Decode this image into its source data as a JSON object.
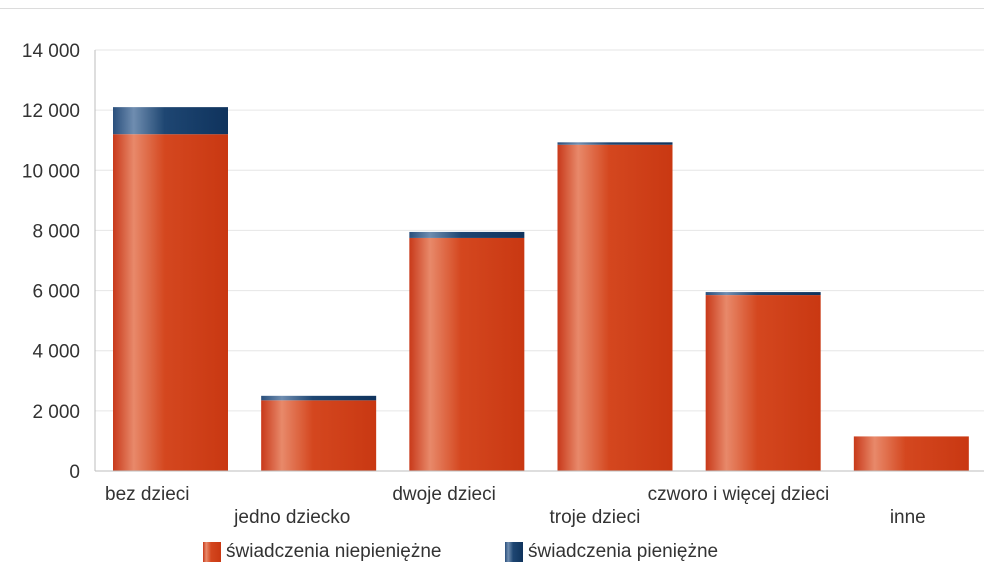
{
  "chart_data": {
    "type": "bar",
    "stacked": true,
    "categories": [
      "bez dzieci",
      "jedno dziecko",
      "dwoje dzieci",
      "troje dzieci",
      "czworo i więcej dzieci",
      "inne"
    ],
    "series": [
      {
        "name": "świadczenia niepieniężne",
        "values": [
          11200,
          2350,
          7750,
          10850,
          5850,
          1150
        ],
        "color": "#d2401e"
      },
      {
        "name": "świadczenia pieniężne",
        "values": [
          900,
          150,
          200,
          80,
          100,
          0
        ],
        "color": "#17406d"
      }
    ],
    "ylim": [
      0,
      14000
    ],
    "y_ticks": [
      0,
      2000,
      4000,
      6000,
      8000,
      10000,
      12000,
      14000
    ],
    "y_tick_labels": [
      "0",
      "2 000",
      "4 000",
      "6 000",
      "8 000",
      "10 000",
      "12 000",
      "14 000"
    ],
    "grid": true,
    "legend_position": "bottom",
    "title": "",
    "xlabel": "",
    "ylabel": ""
  }
}
